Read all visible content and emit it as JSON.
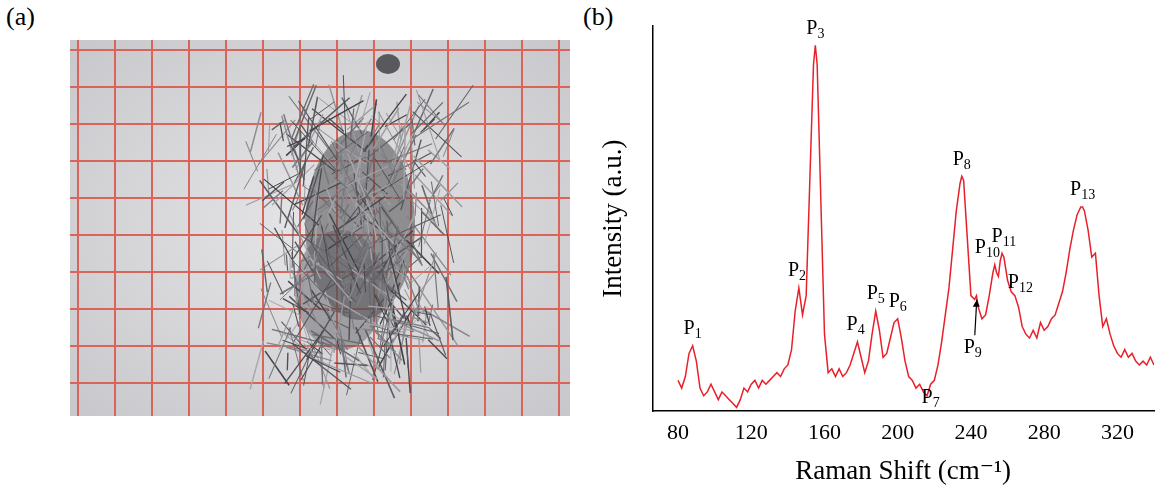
{
  "panel_a": {
    "label": "(a)"
  },
  "chart_data": {
    "panel_label": "(b)",
    "type": "line",
    "x_label": "Raman Shift (cm⁻¹)",
    "y_label": "Intensity (a.u.)",
    "color": "#e8202a",
    "x": [
      80,
      82,
      84,
      86,
      88,
      90,
      92,
      94,
      96,
      98,
      100,
      102,
      104,
      106,
      108,
      110,
      112,
      114,
      116,
      118,
      120,
      122,
      124,
      126,
      128,
      130,
      132,
      134,
      136,
      138,
      140,
      142,
      144,
      146,
      148,
      150,
      152,
      154,
      155,
      156,
      158,
      160,
      162,
      164,
      166,
      168,
      170,
      172,
      174,
      176,
      178,
      180,
      182,
      184,
      186,
      188,
      190,
      192,
      194,
      196,
      198,
      200,
      202,
      204,
      206,
      208,
      210,
      212,
      214,
      216,
      218,
      220,
      222,
      224,
      226,
      228,
      230,
      232,
      234,
      235,
      236,
      238,
      240,
      242,
      243,
      244,
      246,
      248,
      250,
      252,
      253,
      254,
      255,
      256,
      257,
      258,
      260,
      262,
      264,
      266,
      268,
      270,
      272,
      274,
      276,
      278,
      280,
      282,
      284,
      286,
      288,
      290,
      292,
      294,
      296,
      298,
      300,
      301,
      302,
      304,
      306,
      308,
      310,
      312,
      314,
      316,
      318,
      320,
      322,
      324,
      326,
      328,
      330,
      332,
      334,
      336,
      338,
      340
    ],
    "values": [
      8,
      6,
      9,
      15,
      17,
      13,
      6,
      4,
      5,
      7,
      5,
      3,
      5,
      4,
      3,
      2,
      1,
      3,
      6,
      5,
      7,
      8,
      6,
      8,
      7,
      8,
      9,
      10,
      9,
      11,
      12,
      16,
      26,
      32,
      25,
      30,
      60,
      90,
      95,
      90,
      55,
      20,
      10,
      11,
      9,
      11,
      9,
      10,
      12,
      15,
      18,
      14,
      10,
      13,
      20,
      26,
      21,
      14,
      15,
      19,
      23,
      24,
      19,
      13,
      9,
      8,
      6,
      7,
      5,
      4,
      7,
      8,
      12,
      18,
      25,
      32,
      42,
      52,
      59,
      61,
      60,
      45,
      30,
      29,
      30,
      27,
      24,
      25,
      30,
      36,
      38,
      36,
      35,
      39,
      41,
      40,
      34,
      31,
      30,
      27,
      22,
      20,
      19,
      21,
      19,
      23,
      21,
      22,
      24,
      25,
      28,
      31,
      36,
      42,
      47,
      51,
      53,
      53,
      52,
      47,
      40,
      41,
      30,
      22,
      24,
      20,
      17,
      15,
      14,
      16,
      14,
      15,
      13,
      12,
      13,
      12,
      14,
      12
    ],
    "xlim": [
      66,
      340
    ],
    "xticks": [
      80,
      120,
      160,
      200,
      240,
      280,
      320
    ],
    "ylim": [
      0,
      100
    ],
    "yticks": [],
    "tick_labels": "x",
    "grid": false,
    "annotations": [
      {
        "text": "P1",
        "x": 88,
        "y": 19
      },
      {
        "text": "P2",
        "x": 145,
        "y": 34
      },
      {
        "text": "P3",
        "x": 155,
        "y": 97
      },
      {
        "text": "P4",
        "x": 177,
        "y": 20
      },
      {
        "text": "P5",
        "x": 188,
        "y": 28
      },
      {
        "text": "P6",
        "x": 200,
        "y": 26
      },
      {
        "text": "P7",
        "x": 218,
        "y": 1
      },
      {
        "text": "P8",
        "x": 235,
        "y": 63
      },
      {
        "text": "P9",
        "x": 241,
        "y": 14
      },
      {
        "text": "P10",
        "x": 249,
        "y": 40
      },
      {
        "text": "P11",
        "x": 258,
        "y": 43
      },
      {
        "text": "P12",
        "x": 267,
        "y": 31
      },
      {
        "text": "P13",
        "x": 301,
        "y": 55
      }
    ]
  }
}
